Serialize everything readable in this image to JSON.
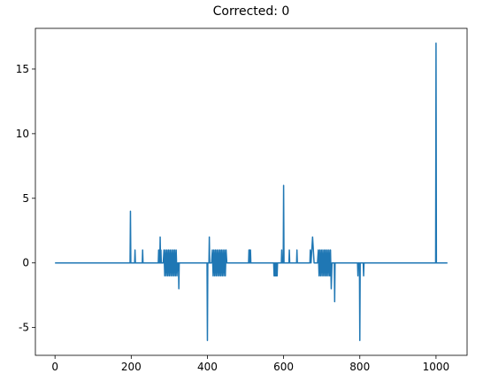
{
  "chart_data": {
    "type": "line",
    "title": "Corrected: 0",
    "x": [
      0,
      197,
      198,
      199,
      209,
      210,
      211,
      229,
      230,
      231,
      271,
      272,
      273,
      274,
      275,
      276,
      277,
      278,
      279,
      284,
      286,
      288,
      290,
      292,
      294,
      296,
      298,
      300,
      302,
      304,
      306,
      308,
      310,
      312,
      314,
      316,
      318,
      320,
      322,
      324,
      325,
      326,
      399,
      400,
      401,
      404,
      405,
      406,
      411,
      413,
      415,
      417,
      419,
      421,
      423,
      425,
      427,
      429,
      431,
      433,
      435,
      437,
      439,
      441,
      443,
      445,
      447,
      449,
      451,
      508,
      509,
      510,
      511,
      512,
      513,
      514,
      574,
      575,
      576,
      577,
      578,
      579,
      580,
      581,
      582,
      583,
      584,
      594,
      595,
      596,
      599,
      600,
      601,
      614,
      615,
      616,
      634,
      635,
      636,
      669,
      670,
      672,
      674,
      676,
      678,
      680,
      689,
      691,
      693,
      695,
      697,
      699,
      701,
      703,
      705,
      707,
      709,
      711,
      713,
      715,
      717,
      719,
      721,
      723,
      725,
      727,
      733,
      734,
      735,
      794,
      795,
      796,
      799,
      800,
      801,
      809,
      810,
      811,
      999,
      1000,
      1001,
      1030
    ],
    "series": [
      {
        "name": null,
        "color": "#1f77b4",
        "values": [
          0,
          0,
          4,
          0,
          0,
          1,
          0,
          0,
          1,
          0,
          0,
          1,
          0,
          1,
          0,
          2,
          0,
          1,
          0,
          0,
          1,
          -1,
          1,
          -1,
          1,
          -1,
          1,
          -1,
          1,
          -1,
          1,
          -1,
          1,
          -1,
          1,
          -1,
          1,
          -1,
          0,
          0,
          -2,
          0,
          0,
          -6,
          0,
          0,
          2,
          0,
          0,
          1,
          -1,
          1,
          -1,
          1,
          -1,
          1,
          -1,
          1,
          -1,
          1,
          -1,
          1,
          -1,
          1,
          -1,
          1,
          -1,
          1,
          0,
          0,
          1,
          0,
          1,
          0,
          1,
          0,
          0,
          -1,
          0,
          -1,
          0,
          -1,
          0,
          -1,
          0,
          -1,
          0,
          0,
          1,
          0,
          0,
          6,
          0,
          0,
          1,
          0,
          0,
          1,
          0,
          0,
          1,
          0,
          1,
          2,
          1,
          0,
          0,
          1,
          -1,
          1,
          -1,
          1,
          -1,
          1,
          -1,
          1,
          -1,
          1,
          -1,
          1,
          -1,
          1,
          -1,
          1,
          -2,
          0,
          0,
          -3,
          0,
          0,
          -1,
          0,
          0,
          -6,
          0,
          0,
          -1,
          0,
          0,
          17,
          0,
          0
        ]
      }
    ],
    "xlim": [
      -51.5,
      1081.5
    ],
    "ylim": [
      -7.15,
      18.15
    ],
    "xticks": [
      0,
      200,
      400,
      600,
      800,
      1000
    ],
    "yticks": [
      -5,
      0,
      5,
      10,
      15
    ],
    "grid": false
  }
}
